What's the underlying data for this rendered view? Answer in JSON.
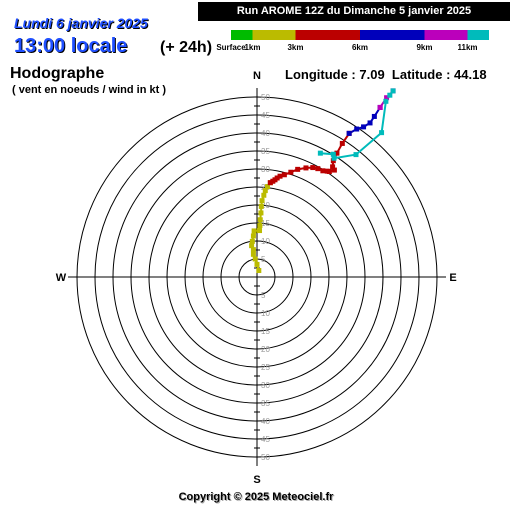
{
  "header": {
    "run": "Run AROME 12Z du Dimanche 5 janvier 2025",
    "date": "Lundi 6 janvier 2025",
    "time": "13:00 locale",
    "offset": "(+ 24h)"
  },
  "location": {
    "longitude_label": "Longitude : 7.09",
    "latitude_label": "Latitude : 44.18"
  },
  "footer": {
    "copyright": "Copyright © 2025 Meteociel.fr"
  },
  "colors": {
    "surface_to_1km": "#00bb00",
    "1km_to_3km": "#bbbb00",
    "3km_to_6km": "#bb0000",
    "6km_to_9km": "#0000bb",
    "9km_to_11km": "#bb00bb",
    "above_11km": "#00bbbb"
  },
  "chart_data": {
    "type": "line",
    "title": "Hodographe",
    "subtitle": "( vent en noeuds / wind in kt )",
    "units": "kt",
    "compass": [
      "N",
      "E",
      "S",
      "W"
    ],
    "rings": [
      5,
      10,
      15,
      20,
      25,
      30,
      35,
      40,
      45,
      50
    ],
    "ring_labels_north": [
      "50",
      "45",
      "40",
      "35",
      "30",
      "25",
      "20",
      "15",
      "10",
      "5"
    ],
    "ring_labels_south": [
      "5",
      "10",
      "15",
      "20",
      "25",
      "30",
      "35",
      "40",
      "45",
      "50"
    ],
    "height_scale": {
      "labels": [
        "Surface",
        "1km",
        "3km",
        "6km",
        "9km",
        "11km"
      ],
      "segment_colors": [
        "#00bb00",
        "#bbbb00",
        "#bb0000",
        "#0000bb",
        "#bb00bb",
        "#00bbbb"
      ],
      "segment_ends_km": [
        1,
        3,
        6,
        9,
        11,
        12
      ]
    },
    "series": [
      {
        "color": "#bbbb00",
        "u": [
          0.5,
          0.0,
          -0.5,
          -1.0,
          -1.0,
          -1.5,
          -1.3,
          -1.0,
          -0.8,
          0.7,
          0.8,
          0.9,
          1.1,
          1.2,
          1.4,
          1.9,
          2.3,
          2.9,
          3.7
        ],
        "v": [
          1.8,
          3.5,
          5.0,
          6.3,
          7.6,
          8.7,
          9.9,
          11.4,
          12.8,
          12.9,
          14.3,
          15.9,
          17.8,
          19.6,
          21.2,
          22.7,
          24.0,
          25.1,
          26.2
        ]
      },
      {
        "color": "#bb0000",
        "u": [
          3.7,
          4.4,
          5.0,
          5.6,
          6.4,
          7.6,
          9.4,
          11.3,
          13.6,
          15.5,
          16.9,
          18.3,
          19.5,
          20.1,
          21.5,
          21.0,
          21.2,
          22.2,
          23.7,
          25.6
        ],
        "v": [
          26.2,
          26.6,
          27.0,
          27.5,
          28.0,
          28.4,
          29.1,
          29.9,
          30.3,
          30.4,
          30.1,
          29.5,
          29.4,
          29.3,
          29.7,
          30.6,
          32.3,
          34.4,
          37.1,
          39.9
        ]
      },
      {
        "color": "#0000bb",
        "u": [
          25.6,
          27.7,
          29.6,
          31.4,
          32.6,
          34.2
        ],
        "v": [
          39.9,
          41.1,
          41.7,
          42.8,
          44.6,
          47.1
        ]
      },
      {
        "color": "#bb00bb",
        "u": [
          34.2,
          36.0,
          37.8
        ],
        "v": [
          47.1,
          49.8,
          51.7
        ]
      },
      {
        "color": "#00bbbb",
        "u": [
          37.8,
          36.9,
          35.8,
          34.6,
          27.5,
          21.4,
          21.2,
          17.6
        ],
        "v": [
          51.7,
          50.5,
          48.8,
          40.1,
          34.0,
          33.0,
          34.1,
          34.4
        ]
      }
    ]
  }
}
